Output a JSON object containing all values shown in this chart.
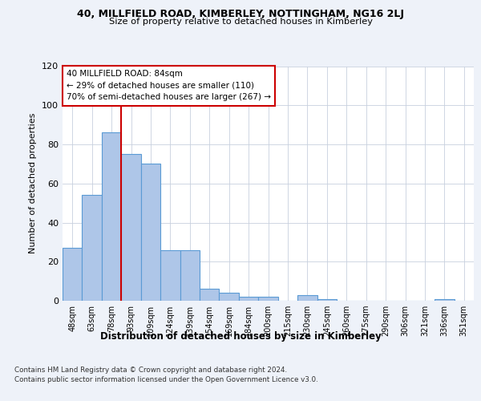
{
  "title": "40, MILLFIELD ROAD, KIMBERLEY, NOTTINGHAM, NG16 2LJ",
  "subtitle": "Size of property relative to detached houses in Kimberley",
  "xlabel": "Distribution of detached houses by size in Kimberley",
  "ylabel": "Number of detached properties",
  "categories": [
    "48sqm",
    "63sqm",
    "78sqm",
    "93sqm",
    "109sqm",
    "124sqm",
    "139sqm",
    "154sqm",
    "169sqm",
    "184sqm",
    "200sqm",
    "215sqm",
    "230sqm",
    "245sqm",
    "260sqm",
    "275sqm",
    "290sqm",
    "306sqm",
    "321sqm",
    "336sqm",
    "351sqm"
  ],
  "values": [
    27,
    54,
    86,
    75,
    70,
    26,
    26,
    6,
    4,
    2,
    2,
    0,
    3,
    1,
    0,
    0,
    0,
    0,
    0,
    1,
    0
  ],
  "bar_color": "#aec6e8",
  "bar_edge_color": "#5b9bd5",
  "red_line_x": 2.5,
  "red_line_label": "40 MILLFIELD ROAD: 84sqm",
  "annotation_line2": "← 29% of detached houses are smaller (110)",
  "annotation_line3": "70% of semi-detached houses are larger (267) →",
  "ylim": [
    0,
    120
  ],
  "yticks": [
    0,
    20,
    40,
    60,
    80,
    100,
    120
  ],
  "footnote1": "Contains HM Land Registry data © Crown copyright and database right 2024.",
  "footnote2": "Contains public sector information licensed under the Open Government Licence v3.0.",
  "bg_color": "#eef2f9",
  "plot_bg_color": "#ffffff",
  "annotation_box_color": "#ffffff",
  "annotation_box_edge": "#cc0000",
  "red_line_color": "#cc0000"
}
